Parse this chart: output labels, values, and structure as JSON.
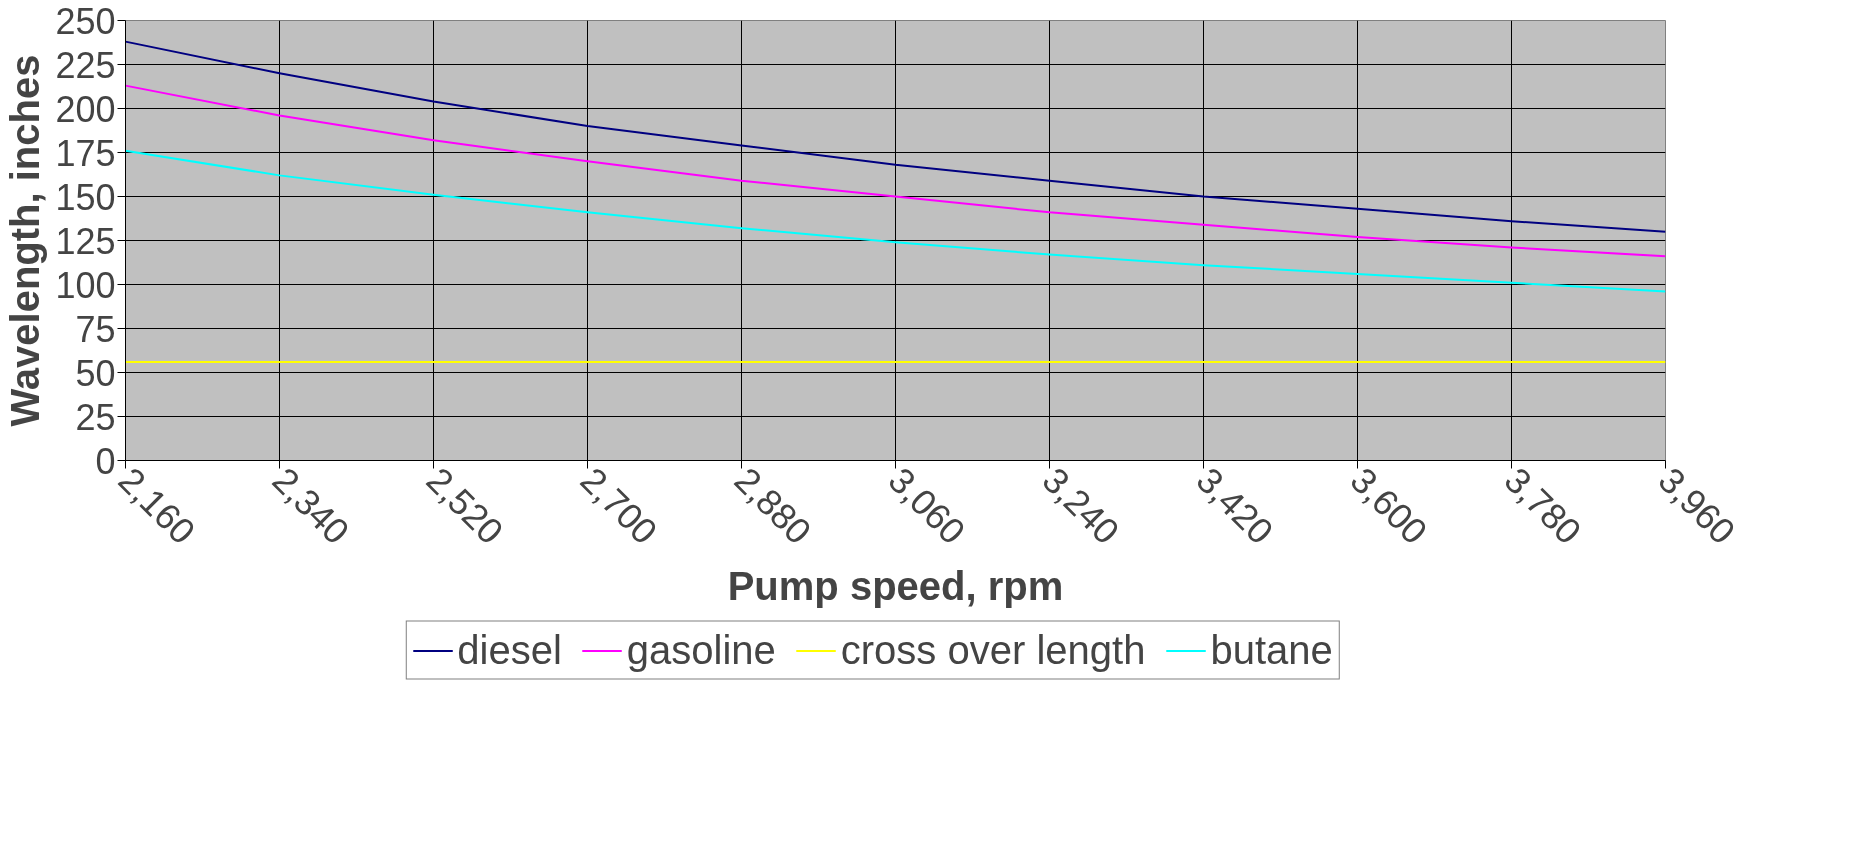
{
  "chart_data": {
    "type": "line",
    "xlabel": "Pump speed, rpm",
    "ylabel": "Wavelength, inches",
    "x": [
      2160,
      2340,
      2520,
      2700,
      2880,
      3060,
      3240,
      3420,
      3600,
      3780,
      3960
    ],
    "series": [
      {
        "name": "diesel",
        "color": "#000080",
        "values": [
          238,
          220,
          204,
          190,
          179,
          168,
          159,
          150,
          143,
          136,
          130
        ]
      },
      {
        "name": "gasoline",
        "color": "#ff00ff",
        "values": [
          213,
          196,
          182,
          170,
          159,
          150,
          141,
          134,
          127,
          121,
          116
        ]
      },
      {
        "name": "cross over length",
        "color": "#ffff00",
        "values": [
          56,
          56,
          56,
          56,
          56,
          56,
          56,
          56,
          56,
          56,
          56
        ]
      },
      {
        "name": "butane",
        "color": "#00ffff",
        "values": [
          176,
          162,
          151,
          141,
          132,
          124,
          117,
          111,
          106,
          101,
          96
        ]
      }
    ],
    "xlim": [
      2160,
      3960
    ],
    "ylim": [
      0,
      250
    ],
    "xticks": [
      {
        "value": 2160,
        "label": "2,160"
      },
      {
        "value": 2340,
        "label": "2,340"
      },
      {
        "value": 2520,
        "label": "2,520"
      },
      {
        "value": 2700,
        "label": "2,700"
      },
      {
        "value": 2880,
        "label": "2,880"
      },
      {
        "value": 3060,
        "label": "3,060"
      },
      {
        "value": 3240,
        "label": "3,240"
      },
      {
        "value": 3420,
        "label": "3,420"
      },
      {
        "value": 3600,
        "label": "3,600"
      },
      {
        "value": 3780,
        "label": "3,780"
      },
      {
        "value": 3960,
        "label": "3,960"
      }
    ],
    "yticks": [
      0,
      25,
      50,
      75,
      100,
      125,
      150,
      175,
      200,
      225,
      250
    ],
    "grid": true,
    "legend": "bottom",
    "marker": "none",
    "line_style": "solid"
  }
}
